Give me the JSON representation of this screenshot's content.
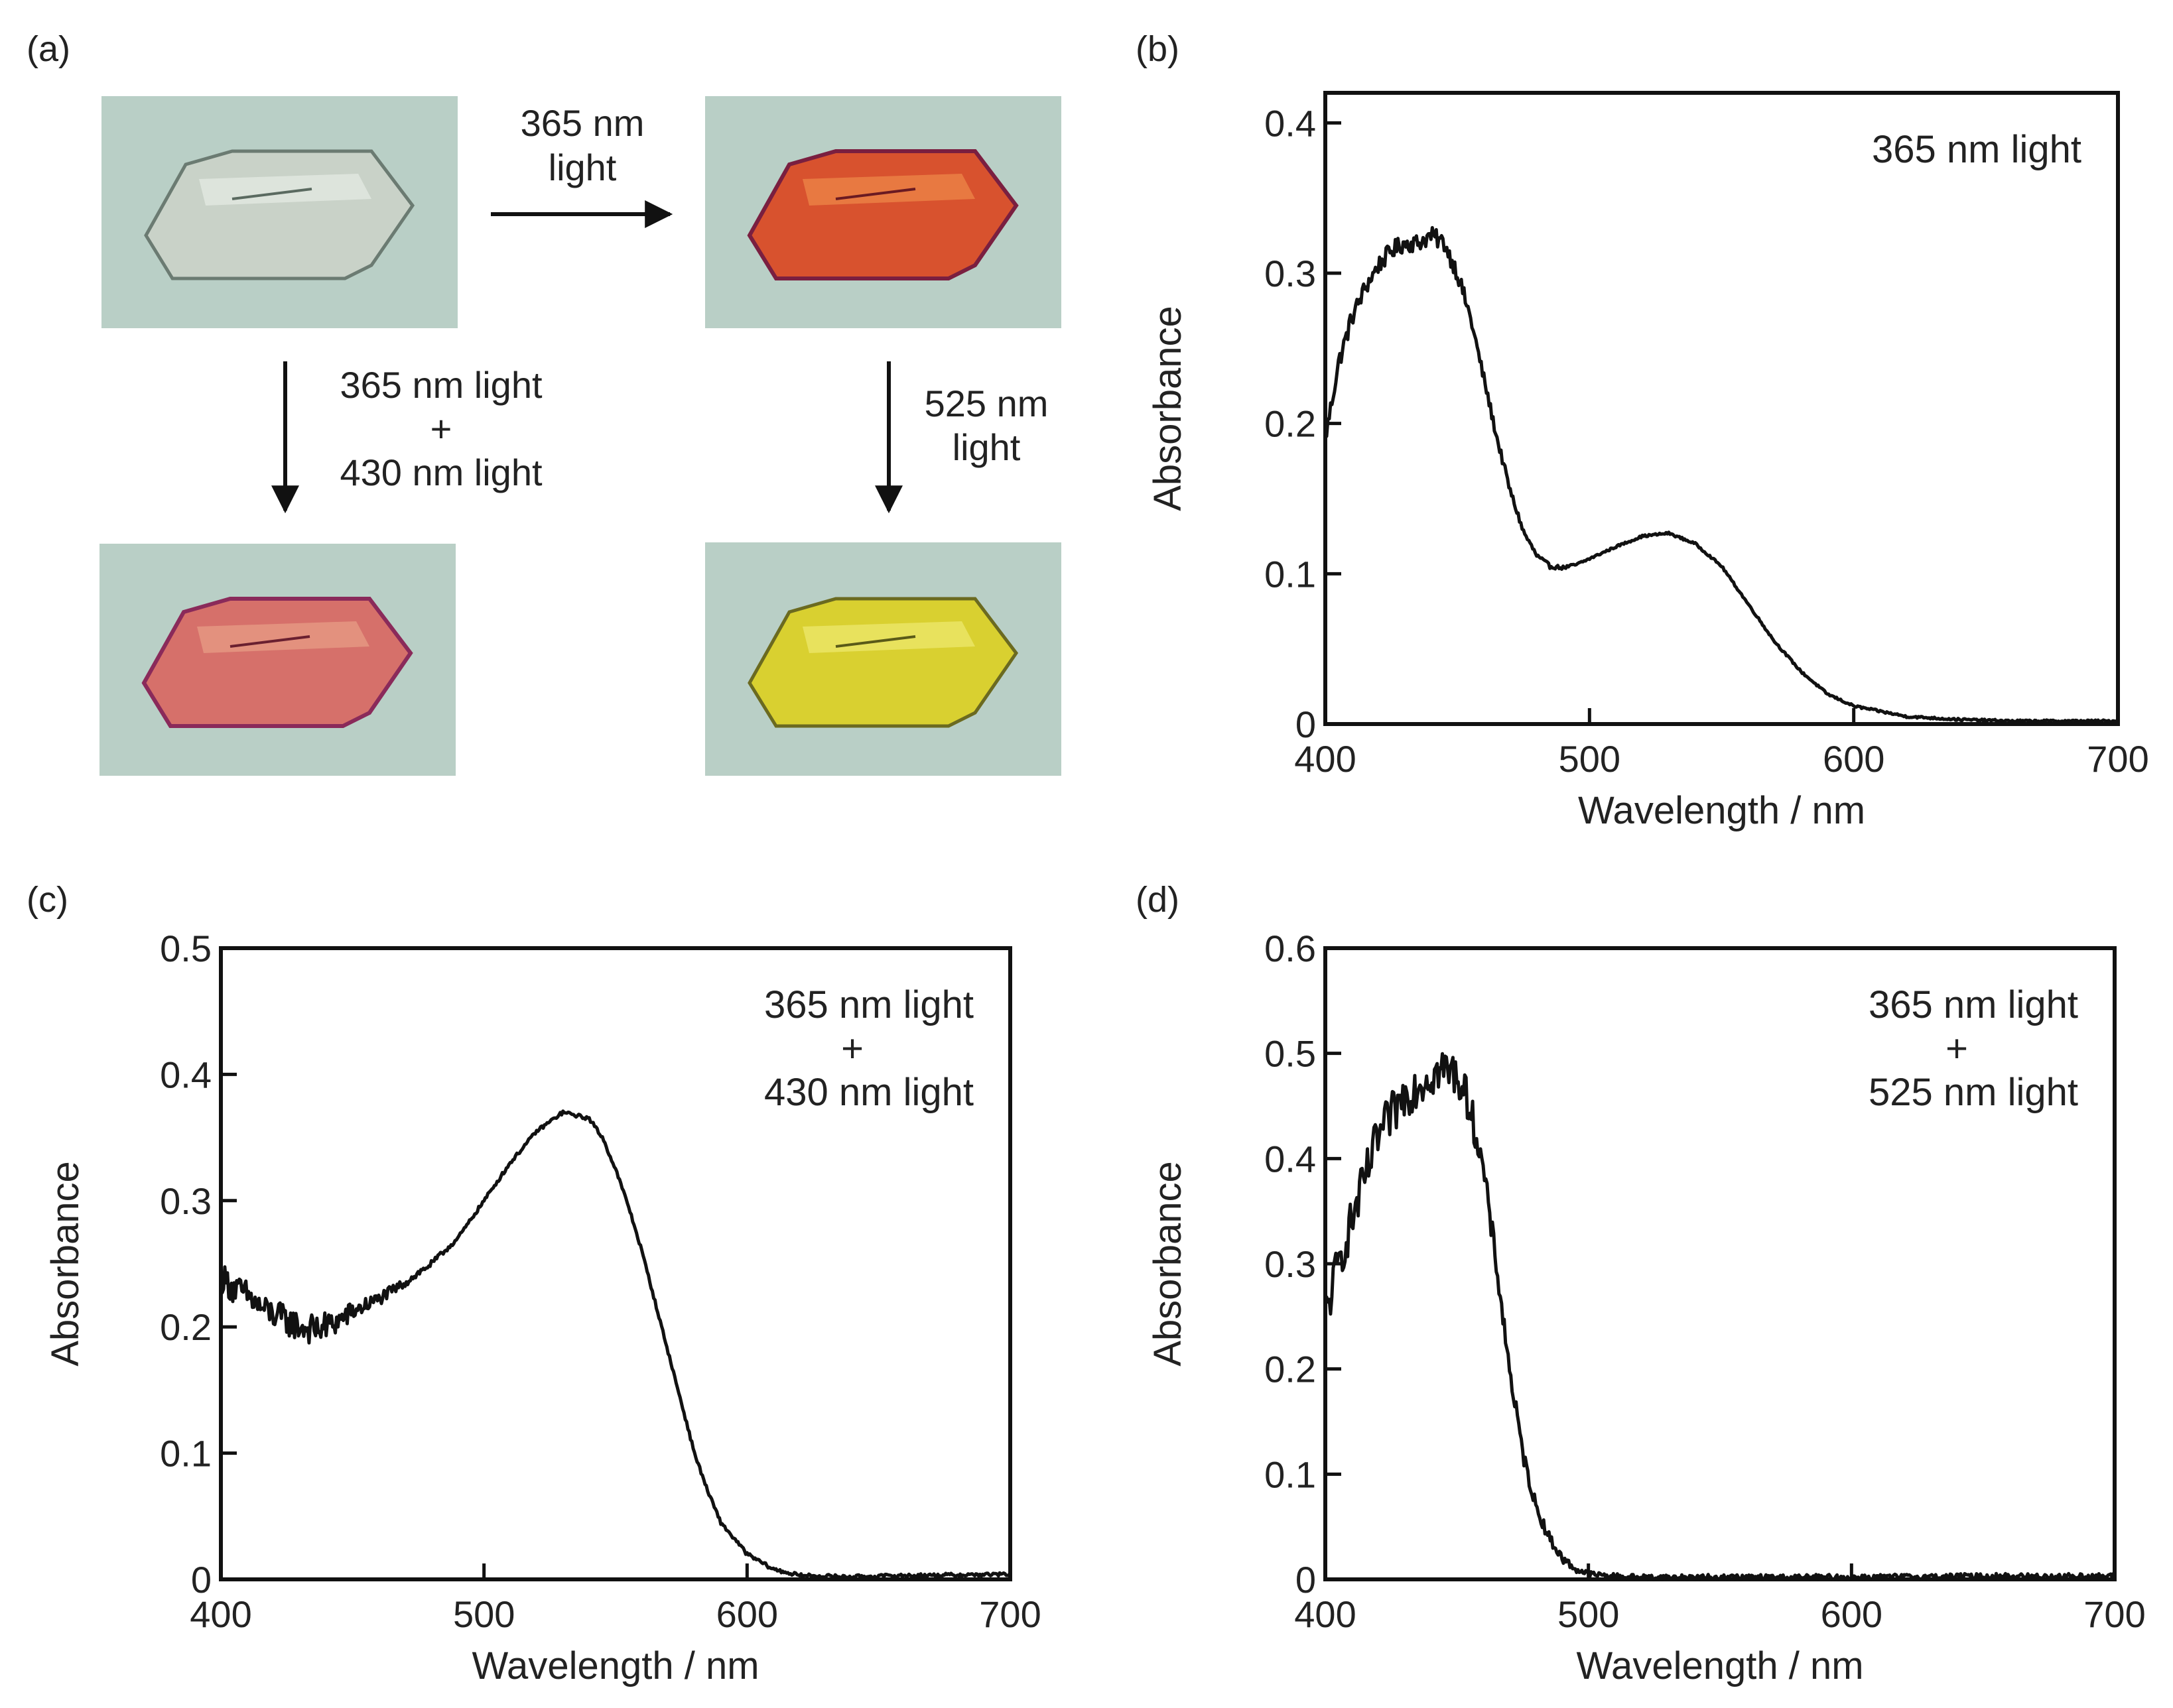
{
  "figure": {
    "panel_labels": {
      "a": "(a)",
      "b": "(b)",
      "c": "(c)",
      "d": "(d)"
    },
    "panel_a": {
      "arrow_top": {
        "line1": "365 nm",
        "line2": "light"
      },
      "arrow_left": {
        "line1": "365 nm light",
        "line2": "+",
        "line3": "430 nm light"
      },
      "arrow_right": {
        "line1": "525 nm",
        "line2": "light"
      },
      "crystal_colors": {
        "initial": "#c9d2c8",
        "after_365": "#d8522e",
        "after_365_430": "#d6706a",
        "after_525": "#d9d030"
      },
      "background_color": "#b9cfc6"
    }
  },
  "chart_data": [
    {
      "id": "b",
      "type": "line",
      "title": "",
      "annotation": [
        "365 nm light"
      ],
      "xlabel": "Wavelength / nm",
      "ylabel": "Absorbance",
      "xlim": [
        400,
        700
      ],
      "ylim": [
        0,
        0.42
      ],
      "xticks": [
        400,
        500,
        600,
        700
      ],
      "xtick_labels": [
        "400",
        "500",
        "600",
        "700"
      ],
      "yticks": [
        0,
        0.1,
        0.2,
        0.3,
        0.4
      ],
      "ytick_labels": [
        "0",
        "0.1",
        "0.2",
        "0.3",
        "0.4"
      ],
      "noise_amp": 0.006,
      "noise_fade": 450,
      "series": [
        {
          "name": "365 nm light",
          "x": [
            400,
            405,
            410,
            415,
            420,
            425,
            430,
            435,
            440,
            445,
            450,
            455,
            460,
            465,
            470,
            475,
            480,
            485,
            490,
            495,
            500,
            510,
            520,
            530,
            540,
            550,
            560,
            570,
            580,
            590,
            600,
            620,
            640,
            660,
            700
          ],
          "y": [
            0.19,
            0.24,
            0.27,
            0.29,
            0.305,
            0.315,
            0.32,
            0.32,
            0.325,
            0.32,
            0.3,
            0.27,
            0.23,
            0.19,
            0.155,
            0.128,
            0.112,
            0.105,
            0.104,
            0.106,
            0.11,
            0.118,
            0.125,
            0.127,
            0.12,
            0.105,
            0.08,
            0.055,
            0.035,
            0.02,
            0.012,
            0.005,
            0.003,
            0.002,
            0.002
          ]
        }
      ]
    },
    {
      "id": "c",
      "type": "line",
      "title": "",
      "annotation": [
        "365 nm light",
        "+",
        "430 nm light"
      ],
      "xlabel": "Wavelength / nm",
      "ylabel": "Absorbance",
      "xlim": [
        400,
        700
      ],
      "ylim": [
        0,
        0.5
      ],
      "xticks": [
        400,
        500,
        600,
        700
      ],
      "xtick_labels": [
        "400",
        "500",
        "600",
        "700"
      ],
      "yticks": [
        0,
        0.1,
        0.2,
        0.3,
        0.4,
        0.5
      ],
      "ytick_labels": [
        "0",
        "0.1",
        "0.2",
        "0.3",
        "0.4",
        "0.5"
      ],
      "noise_amp": 0.012,
      "noise_fade": 440,
      "series": [
        {
          "name": "365 nm light + 430 nm light",
          "x": [
            400,
            405,
            410,
            415,
            420,
            425,
            430,
            435,
            440,
            445,
            450,
            460,
            470,
            480,
            490,
            500,
            510,
            520,
            530,
            540,
            545,
            550,
            555,
            560,
            565,
            570,
            575,
            580,
            585,
            590,
            600,
            610,
            620,
            640,
            660,
            700
          ],
          "y": [
            0.24,
            0.23,
            0.225,
            0.215,
            0.21,
            0.205,
            0.2,
            0.198,
            0.2,
            0.205,
            0.212,
            0.222,
            0.235,
            0.25,
            0.27,
            0.3,
            0.33,
            0.355,
            0.37,
            0.365,
            0.35,
            0.325,
            0.295,
            0.26,
            0.22,
            0.18,
            0.14,
            0.1,
            0.07,
            0.045,
            0.02,
            0.008,
            0.003,
            0.002,
            0.003,
            0.004
          ]
        }
      ]
    },
    {
      "id": "d",
      "type": "line",
      "title": "",
      "annotation": [
        "365 nm light",
        "+",
        "525 nm light"
      ],
      "xlabel": "Wavelength / nm",
      "ylabel": "Absorbance",
      "xlim": [
        400,
        700
      ],
      "ylim": [
        0,
        0.6
      ],
      "xticks": [
        400,
        500,
        600,
        700
      ],
      "xtick_labels": [
        "400",
        "500",
        "600",
        "700"
      ],
      "yticks": [
        0,
        0.1,
        0.2,
        0.3,
        0.4,
        0.5,
        0.6
      ],
      "ytick_labels": [
        "0",
        "0.1",
        "0.2",
        "0.3",
        "0.4",
        "0.5",
        "0.6"
      ],
      "noise_amp": 0.022,
      "noise_fade": 450,
      "series": [
        {
          "name": "365 nm light + 525 nm light",
          "x": [
            400,
            405,
            410,
            415,
            420,
            425,
            430,
            435,
            440,
            445,
            450,
            455,
            460,
            465,
            470,
            475,
            480,
            485,
            490,
            495,
            500,
            510,
            520,
            550,
            600,
            650,
            700
          ],
          "y": [
            0.25,
            0.3,
            0.34,
            0.38,
            0.42,
            0.44,
            0.46,
            0.47,
            0.48,
            0.485,
            0.48,
            0.45,
            0.39,
            0.3,
            0.2,
            0.12,
            0.07,
            0.04,
            0.02,
            0.01,
            0.005,
            0.003,
            0.002,
            0.002,
            0.002,
            0.003,
            0.003
          ]
        }
      ]
    }
  ]
}
